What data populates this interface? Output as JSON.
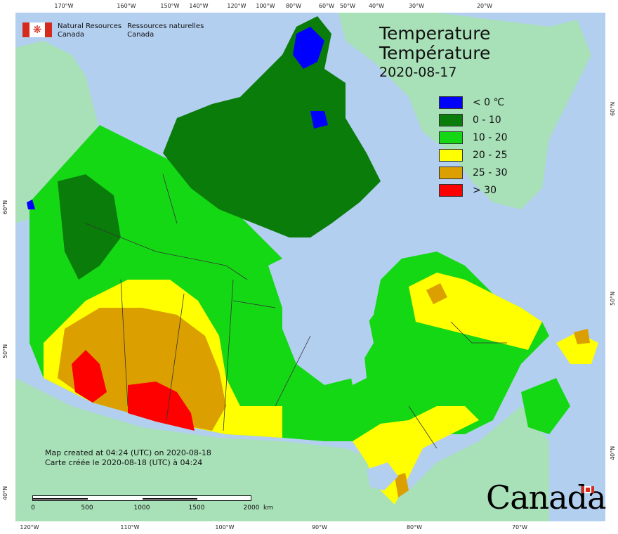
{
  "org": {
    "en_line1": "Natural Resources",
    "en_line2": "Canada",
    "fr_line1": "Ressources naturelles",
    "fr_line2": "Canada"
  },
  "title": {
    "en": "Temperature",
    "fr": "Température",
    "date": "2020-08-17"
  },
  "legend": [
    {
      "label": "< 0 ℃",
      "color": "#0000ff"
    },
    {
      "label": "0 - 10",
      "color": "#0a7c0a"
    },
    {
      "label": "10 - 20",
      "color": "#15d815"
    },
    {
      "label": "20 - 25",
      "color": "#ffff00"
    },
    {
      "label": "25 - 30",
      "color": "#dba000"
    },
    {
      "label": "> 30",
      "color": "#ff0000"
    }
  ],
  "credits": {
    "en": "Map created at 04:24 (UTC) on 2020-08-18",
    "fr": "Carte créée le 2020-08-18 (UTC) à 04:24"
  },
  "scale": {
    "ticks": [
      "0",
      "500",
      "1000",
      "1500",
      "2000"
    ],
    "unit": "km"
  },
  "wordmark": "Canada",
  "graticule": {
    "top": [
      "170°W",
      "160°W",
      "150°W",
      "140°W",
      "120°W",
      "100°W",
      "80°W",
      "60°W",
      "50°W",
      "40°W",
      "30°W",
      "20°W"
    ],
    "bottom": [
      "120°W",
      "110°W",
      "100°W",
      "90°W",
      "80°W",
      "70°W"
    ],
    "left": [
      "60°N",
      "50°N",
      "40°N"
    ],
    "right": [
      "60°N",
      "50°N",
      "40°N"
    ]
  },
  "colors": {
    "ocean": "#b3cff0",
    "land_other": "#a8e0b8"
  }
}
